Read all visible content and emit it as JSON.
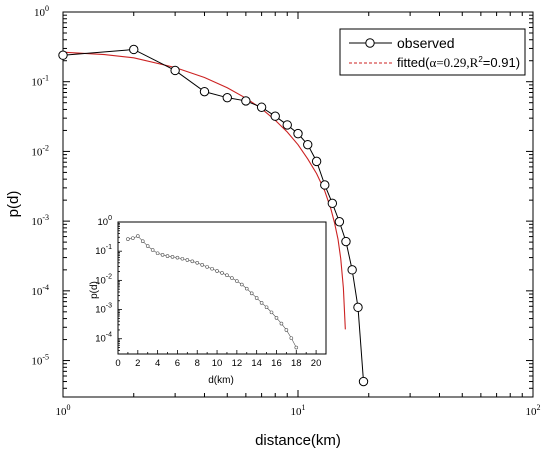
{
  "chart_data": [
    {
      "type": "line",
      "xlabel": "distance(km)",
      "ylabel": "p(d)",
      "x_scale": "log",
      "y_scale": "log",
      "xlim": [
        1,
        100
      ],
      "ylim": [
        3e-06,
        1
      ],
      "x_ticks": [
        {
          "base": "10",
          "exp": "0",
          "value": 1
        },
        {
          "base": "10",
          "exp": "1",
          "value": 10
        },
        {
          "base": "10",
          "exp": "2",
          "value": 100
        }
      ],
      "y_ticks": [
        {
          "base": "10",
          "exp": "-5",
          "value": 1e-05
        },
        {
          "base": "10",
          "exp": "-4",
          "value": 0.0001
        },
        {
          "base": "10",
          "exp": "-3",
          "value": 0.001
        },
        {
          "base": "10",
          "exp": "-2",
          "value": 0.01
        },
        {
          "base": "10",
          "exp": "-1",
          "value": 0.1
        },
        {
          "base": "10",
          "exp": "0",
          "value": 1
        }
      ],
      "legend_position": "top-right",
      "series": [
        {
          "name": "observed",
          "color": "#000000",
          "marker": "open-circle",
          "x": [
            1,
            2,
            3,
            4,
            5,
            6,
            7,
            8,
            9,
            10,
            11,
            12,
            13,
            14,
            15,
            16,
            17,
            18,
            19
          ],
          "y": [
            0.24,
            0.29,
            0.145,
            0.072,
            0.059,
            0.053,
            0.043,
            0.032,
            0.024,
            0.018,
            0.0125,
            0.0072,
            0.0033,
            0.0018,
            0.00098,
            0.00051,
            0.0002,
            5.8e-05,
            5e-06
          ]
        },
        {
          "name_prefix": "fitted(",
          "name_alpha": "α=0.29,R",
          "name_exp": "2",
          "name_suffix": "=0.91)",
          "color": "#cc2222",
          "style": "solid",
          "x": [
            1,
            1.5,
            2,
            3,
            4,
            5,
            6,
            7,
            8,
            9,
            10,
            11,
            12,
            13,
            13.8,
            14.3,
            14.8,
            15.2,
            15.6,
            15.9
          ],
          "y": [
            0.265,
            0.245,
            0.22,
            0.16,
            0.115,
            0.082,
            0.058,
            0.041,
            0.028,
            0.019,
            0.0125,
            0.0078,
            0.0048,
            0.0027,
            0.0015,
            0.00095,
            0.00055,
            0.00029,
            0.00011,
            2.8e-05
          ]
        }
      ]
    },
    {
      "type": "line",
      "xlabel": "d(km)",
      "ylabel": "p(d)",
      "x_scale": "linear",
      "y_scale": "log",
      "xlim": [
        0,
        21
      ],
      "ylim": [
        3e-05,
        1
      ],
      "x_ticks": [
        0,
        2,
        4,
        6,
        8,
        10,
        12,
        14,
        16,
        18,
        20
      ],
      "y_ticks": [
        {
          "base": "10",
          "exp": "-4",
          "value": 0.0001
        },
        {
          "base": "10",
          "exp": "-3",
          "value": 0.001
        },
        {
          "base": "10",
          "exp": "-2",
          "value": 0.01
        },
        {
          "base": "10",
          "exp": "-1",
          "value": 0.1
        },
        {
          "base": "10",
          "exp": "0",
          "value": 1
        }
      ],
      "series": [
        {
          "color": "#555555",
          "marker": "small-open-circle",
          "x": [
            1,
            1.5,
            2,
            2.5,
            3,
            3.5,
            4,
            4.5,
            5,
            5.5,
            6,
            6.5,
            7,
            7.5,
            8,
            8.5,
            9,
            9.5,
            10,
            10.5,
            11,
            11.5,
            12,
            12.5,
            13,
            13.5,
            14,
            14.5,
            15,
            15.5,
            16,
            16.5,
            17,
            17.5,
            18
          ],
          "y": [
            0.26,
            0.28,
            0.33,
            0.22,
            0.15,
            0.11,
            0.085,
            0.075,
            0.068,
            0.064,
            0.06,
            0.055,
            0.05,
            0.045,
            0.04,
            0.034,
            0.029,
            0.025,
            0.021,
            0.018,
            0.015,
            0.012,
            0.0095,
            0.0072,
            0.0052,
            0.0036,
            0.0025,
            0.0017,
            0.0012,
            0.0008,
            0.00052,
            0.00033,
            0.0002,
            0.000105,
            5e-05
          ]
        }
      ]
    }
  ]
}
